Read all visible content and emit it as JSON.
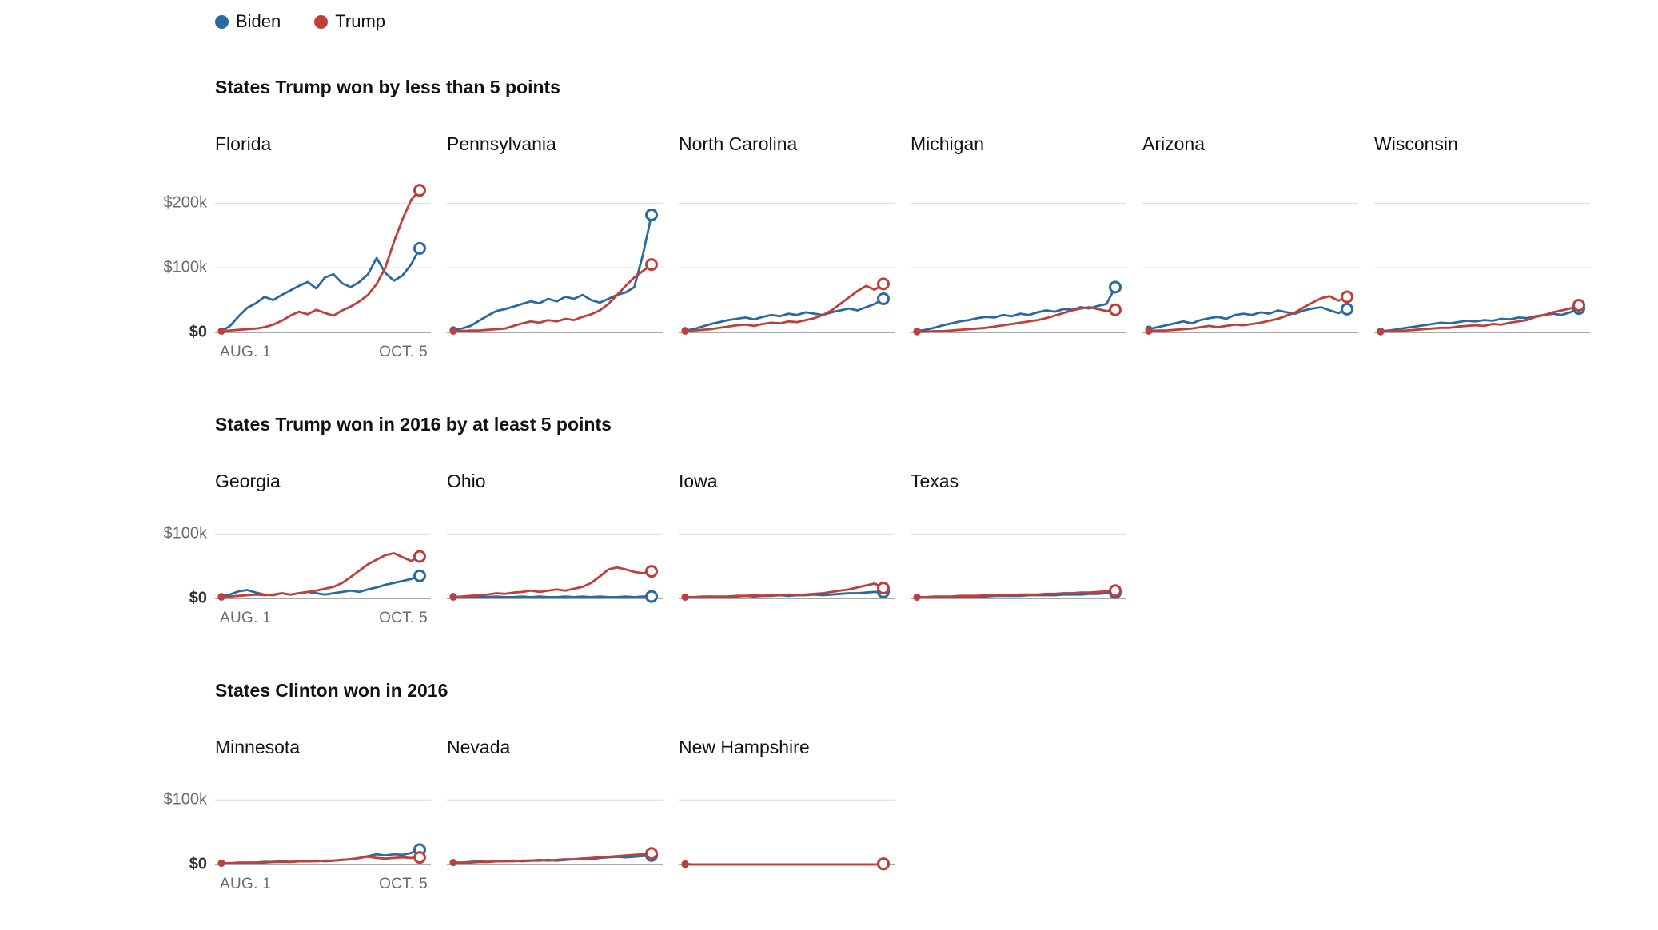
{
  "legend": {
    "items": [
      {
        "label": "Biden",
        "color": "#2a6a9e"
      },
      {
        "label": "Trump",
        "color": "#bf3f3b"
      }
    ]
  },
  "chart_data": {
    "type": "line",
    "unit": "USD thousands per day",
    "x_axis": {
      "start": "AUG. 1",
      "end": "OCT. 5"
    },
    "series_names": [
      "Biden",
      "Trump"
    ],
    "colors": {
      "biden": "#2a6a9e",
      "trump": "#bf3f3b"
    },
    "grid": true,
    "sections": [
      {
        "title": "States Trump won by less than 5 points",
        "ymax": 240,
        "grid_values": [
          100,
          200
        ],
        "y_ticks": [
          {
            "label": "$200k",
            "value": 200
          },
          {
            "label": "$100k",
            "value": 100
          },
          {
            "label": "$0",
            "value": 0
          }
        ],
        "charts": [
          {
            "state": "Florida",
            "biden": [
              2,
              10,
              25,
              38,
              45,
              55,
              50,
              58,
              65,
              72,
              78,
              68,
              85,
              90,
              76,
              70,
              78,
              90,
              115,
              92,
              80,
              88,
              105,
              130
            ],
            "trump": [
              2,
              3,
              4,
              5,
              6,
              8,
              12,
              18,
              26,
              32,
              28,
              35,
              30,
              26,
              34,
              40,
              48,
              58,
              75,
              100,
              140,
              175,
              205,
              220
            ]
          },
          {
            "state": "Pennsylvania",
            "biden": [
              4,
              6,
              10,
              18,
              26,
              33,
              36,
              40,
              44,
              48,
              45,
              52,
              48,
              55,
              52,
              58,
              50,
              46,
              52,
              58,
              62,
              70,
              120,
              182
            ],
            "trump": [
              2,
              2,
              3,
              3,
              4,
              5,
              6,
              10,
              14,
              17,
              15,
              19,
              17,
              21,
              19,
              24,
              28,
              34,
              44,
              58,
              72,
              85,
              95,
              105
            ]
          },
          {
            "state": "North Carolina",
            "biden": [
              3,
              5,
              9,
              13,
              16,
              19,
              21,
              23,
              20,
              24,
              27,
              25,
              29,
              27,
              31,
              29,
              27,
              31,
              34,
              37,
              34,
              39,
              44,
              52
            ],
            "trump": [
              2,
              3,
              4,
              5,
              7,
              9,
              11,
              12,
              10,
              13,
              15,
              14,
              17,
              16,
              19,
              22,
              27,
              34,
              44,
              54,
              64,
              72,
              66,
              75
            ]
          },
          {
            "state": "Michigan",
            "biden": [
              2,
              4,
              7,
              11,
              14,
              17,
              19,
              22,
              24,
              23,
              27,
              25,
              29,
              27,
              31,
              34,
              32,
              36,
              35,
              39,
              37,
              41,
              44,
              70
            ],
            "trump": [
              1,
              1,
              2,
              2,
              3,
              4,
              5,
              6,
              7,
              9,
              11,
              13,
              15,
              17,
              19,
              22,
              26,
              30,
              34,
              37,
              39,
              36,
              33,
              35
            ]
          },
          {
            "state": "Arizona",
            "biden": [
              5,
              8,
              11,
              14,
              17,
              14,
              19,
              22,
              24,
              21,
              27,
              29,
              27,
              31,
              29,
              34,
              31,
              29,
              34,
              37,
              39,
              34,
              30,
              36
            ],
            "trump": [
              2,
              3,
              3,
              4,
              5,
              6,
              8,
              10,
              8,
              10,
              12,
              11,
              13,
              15,
              18,
              21,
              26,
              31,
              39,
              46,
              53,
              56,
              49,
              55
            ]
          },
          {
            "state": "Wisconsin",
            "biden": [
              2,
              3,
              5,
              7,
              9,
              11,
              13,
              15,
              14,
              16,
              18,
              17,
              19,
              18,
              21,
              20,
              23,
              22,
              25,
              27,
              29,
              27,
              31,
              37
            ],
            "trump": [
              1,
              2,
              2,
              3,
              4,
              5,
              6,
              7,
              7,
              9,
              10,
              11,
              10,
              13,
              12,
              15,
              17,
              19,
              24,
              27,
              31,
              34,
              37,
              42
            ]
          }
        ]
      },
      {
        "title": "States Trump won in 2016 by at least 5 points",
        "ymax": 130,
        "grid_values": [
          100
        ],
        "y_ticks": [
          {
            "label": "$100k",
            "value": 100
          },
          {
            "label": "$0",
            "value": 0
          }
        ],
        "charts": [
          {
            "state": "Georgia",
            "biden": [
              3,
              6,
              11,
              13,
              9,
              6,
              5,
              8,
              6,
              8,
              10,
              8,
              6,
              8,
              10,
              12,
              10,
              14,
              17,
              21,
              24,
              27,
              30,
              35
            ],
            "trump": [
              2,
              3,
              4,
              5,
              6,
              5,
              6,
              8,
              6,
              8,
              10,
              12,
              15,
              18,
              24,
              33,
              43,
              53,
              60,
              67,
              70,
              64,
              58,
              65
            ]
          },
          {
            "state": "Ohio",
            "biden": [
              3,
              2,
              2,
              3,
              2,
              3,
              2,
              2,
              3,
              2,
              3,
              2,
              2,
              3,
              2,
              3,
              2,
              3,
              2,
              2,
              3,
              2,
              3,
              3
            ],
            "trump": [
              2,
              3,
              4,
              5,
              6,
              8,
              7,
              9,
              10,
              12,
              10,
              12,
              14,
              12,
              15,
              18,
              24,
              34,
              45,
              48,
              45,
              41,
              39,
              42
            ]
          },
          {
            "state": "Iowa",
            "biden": [
              2,
              2,
              3,
              3,
              2,
              3,
              3,
              4,
              3,
              4,
              4,
              5,
              4,
              5,
              5,
              6,
              5,
              6,
              7,
              8,
              8,
              9,
              10,
              10
            ],
            "trump": [
              2,
              2,
              2,
              3,
              3,
              3,
              4,
              4,
              5,
              4,
              5,
              5,
              6,
              5,
              6,
              7,
              8,
              10,
              12,
              14,
              17,
              20,
              23,
              16
            ]
          },
          {
            "state": "Texas",
            "biden": [
              2,
              2,
              2,
              2,
              3,
              3,
              3,
              3,
              3,
              4,
              4,
              4,
              4,
              5,
              5,
              5,
              5,
              6,
              6,
              6,
              7,
              7,
              8,
              9
            ],
            "trump": [
              2,
              2,
              3,
              3,
              3,
              4,
              4,
              4,
              5,
              5,
              5,
              5,
              6,
              6,
              6,
              7,
              7,
              8,
              8,
              9,
              9,
              10,
              11,
              12
            ]
          }
        ]
      },
      {
        "title": "States Clinton won in 2016",
        "ymax": 130,
        "grid_values": [
          100
        ],
        "y_ticks": [
          {
            "label": "$100k",
            "value": 100
          },
          {
            "label": "$0",
            "value": 0
          }
        ],
        "charts": [
          {
            "state": "Minnesota",
            "biden": [
              2,
              2,
              3,
              3,
              3,
              4,
              4,
              5,
              4,
              5,
              5,
              6,
              5,
              6,
              7,
              8,
              10,
              13,
              16,
              14,
              16,
              15,
              18,
              23
            ],
            "trump": [
              2,
              2,
              2,
              3,
              3,
              3,
              4,
              4,
              4,
              5,
              5,
              5,
              6,
              6,
              7,
              8,
              10,
              12,
              10,
              9,
              10,
              11,
              10,
              11
            ]
          },
          {
            "state": "Nevada",
            "biden": [
              3,
              3,
              4,
              5,
              4,
              5,
              5,
              6,
              5,
              6,
              6,
              7,
              6,
              7,
              8,
              9,
              8,
              10,
              11,
              12,
              11,
              12,
              13,
              14
            ],
            "trump": [
              3,
              3,
              3,
              4,
              4,
              5,
              5,
              5,
              6,
              6,
              7,
              6,
              7,
              8,
              8,
              9,
              10,
              11,
              12,
              13,
              14,
              15,
              16,
              17
            ]
          },
          {
            "state": "New Hampshire",
            "biden": [
              0,
              0,
              0,
              0,
              0,
              0,
              0,
              0,
              0,
              0,
              0,
              0,
              0,
              0,
              0,
              0,
              0,
              0,
              0,
              0,
              0,
              0,
              0,
              1
            ],
            "trump": [
              1,
              0,
              0,
              0,
              0,
              0,
              0,
              0,
              0,
              0,
              0,
              0,
              0,
              0,
              0,
              0,
              0,
              0,
              0,
              0,
              0,
              0,
              0,
              1
            ]
          }
        ]
      }
    ]
  }
}
